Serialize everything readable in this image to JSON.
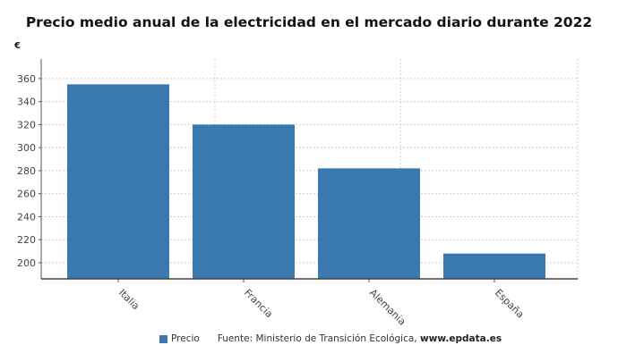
{
  "chart_data": {
    "type": "bar",
    "title": "Precio medio anual de la electricidad en el mercado diario durante 2022",
    "ylabel": "€",
    "xlabel": "",
    "categories": [
      "Italia",
      "Francia",
      "Alemania",
      "España"
    ],
    "series": [
      {
        "name": "Precio",
        "values": [
          355,
          320,
          282,
          208
        ],
        "color": "#3a78b0"
      }
    ],
    "ylim": [
      186,
      377
    ],
    "yticks": [
      200,
      220,
      240,
      260,
      280,
      300,
      320,
      340,
      360
    ],
    "grid": true,
    "legend": "bottom"
  },
  "source": {
    "prefix": "Fuente: Ministerio de Transición Ecológica, ",
    "site": "www.epdata.es"
  }
}
